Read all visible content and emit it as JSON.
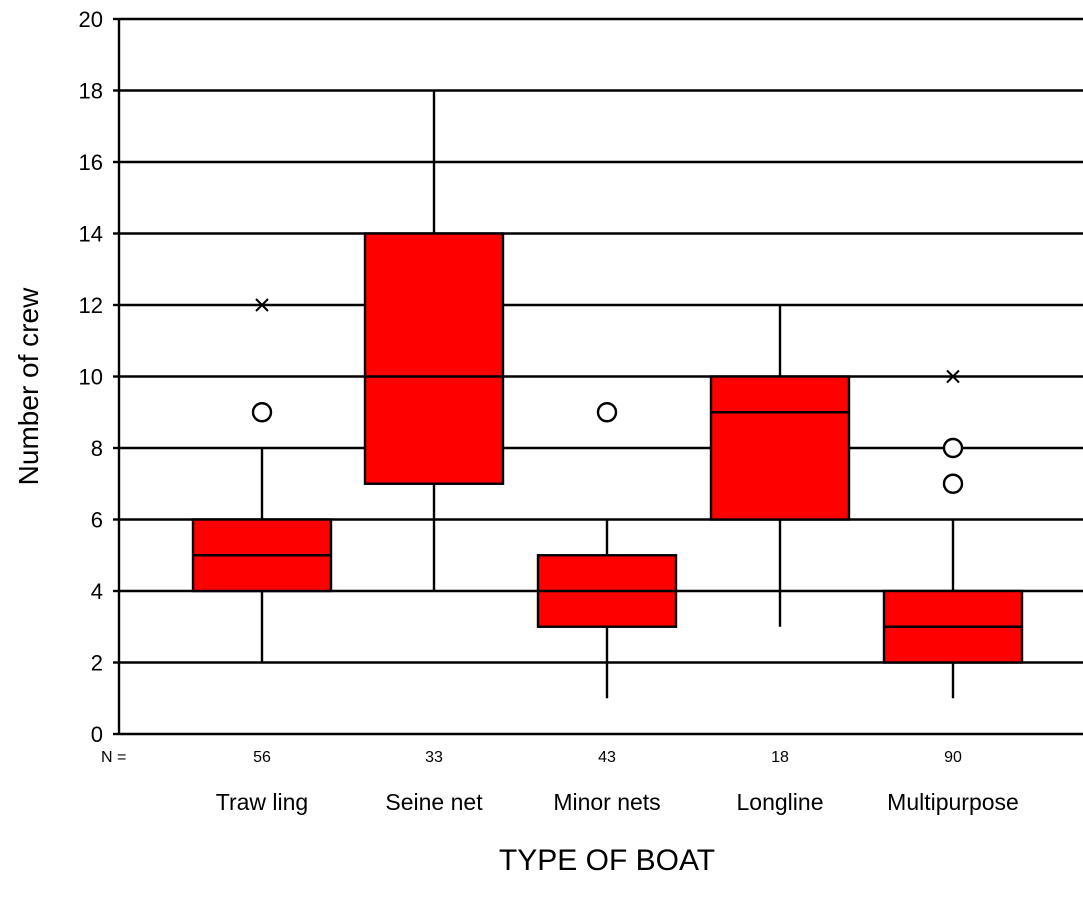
{
  "chart_data": {
    "type": "box",
    "title": "",
    "xlabel": "TYPE OF BOAT",
    "ylabel": "Number of crew",
    "ylim": [
      0,
      20
    ],
    "yticks": [
      0,
      2,
      4,
      6,
      8,
      10,
      12,
      14,
      16,
      18,
      20
    ],
    "grid": "horizontal",
    "n_prefix": "N =",
    "colors": {
      "box_fill": "#ff0000",
      "line": "#000000",
      "background": "#ffffff"
    },
    "categories": [
      "Traw ling",
      "Seine net",
      "Minor nets",
      "Longline",
      "Multipurpose"
    ],
    "boxes": [
      {
        "category": "Traw ling",
        "n": "56",
        "whisker_low": 2,
        "q1": 4,
        "median": 5,
        "q3": 6,
        "whisker_high": 8,
        "outliers": [
          9
        ],
        "extremes": [
          12
        ]
      },
      {
        "category": "Seine net",
        "n": "33",
        "whisker_low": 4,
        "q1": 7,
        "median": 10,
        "q3": 14,
        "whisker_high": 18,
        "outliers": [],
        "extremes": []
      },
      {
        "category": "Minor nets",
        "n": "43",
        "whisker_low": 1,
        "q1": 3,
        "median": 4,
        "q3": 5,
        "whisker_high": 6,
        "outliers": [
          9
        ],
        "extremes": []
      },
      {
        "category": "Longline",
        "n": "18",
        "whisker_low": 3,
        "q1": 6,
        "median": 9,
        "q3": 10,
        "whisker_high": 12,
        "outliers": [],
        "extremes": []
      },
      {
        "category": "Multipurpose",
        "n": "90",
        "whisker_low": 1,
        "q1": 2,
        "median": 3,
        "q3": 4,
        "whisker_high": 6,
        "outliers": [
          7,
          8
        ],
        "extremes": [
          10
        ]
      }
    ]
  }
}
